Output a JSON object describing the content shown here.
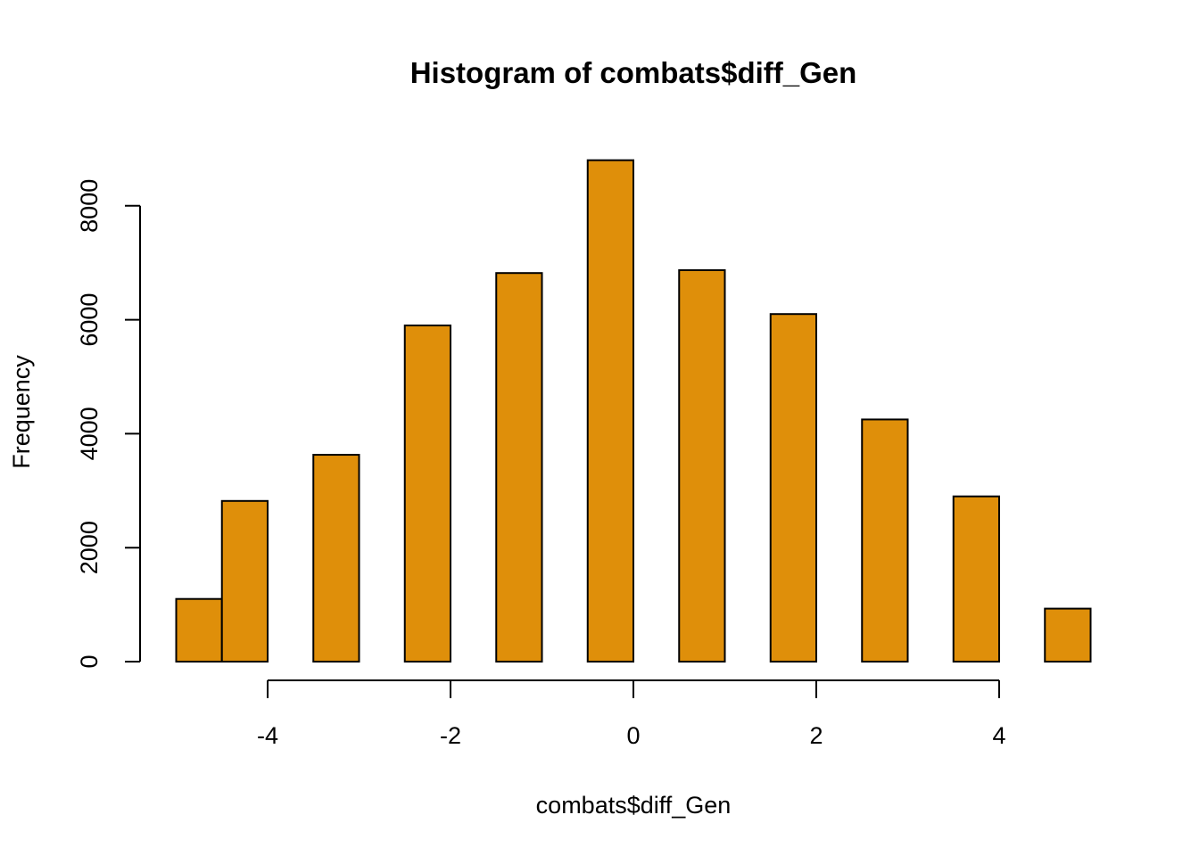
{
  "chart_data": {
    "type": "bar",
    "title": "Histogram of combats$diff_Gen",
    "xlabel": "combats$diff_Gen",
    "ylabel": "Frequency",
    "bar_color": "#DF8F0A",
    "border_color": "#000000",
    "xlim": [
      -5,
      5
    ],
    "ylim": [
      0,
      8800
    ],
    "bins": [
      {
        "x0": -5,
        "x1": -4.5,
        "count": 1100
      },
      {
        "x0": -4.5,
        "x1": -4,
        "count": 2820
      },
      {
        "x0": -3.5,
        "x1": -3,
        "count": 3630
      },
      {
        "x0": -2.5,
        "x1": -2,
        "count": 5900
      },
      {
        "x0": -1.5,
        "x1": -1,
        "count": 6820
      },
      {
        "x0": -0.5,
        "x1": 0,
        "count": 8800
      },
      {
        "x0": 0.5,
        "x1": 1,
        "count": 6870
      },
      {
        "x0": 1.5,
        "x1": 2,
        "count": 6100
      },
      {
        "x0": 2.5,
        "x1": 3,
        "count": 4250
      },
      {
        "x0": 3.5,
        "x1": 4,
        "count": 2900
      },
      {
        "x0": 4.5,
        "x1": 5,
        "count": 930
      }
    ],
    "x_ticks": [
      -4,
      -2,
      0,
      2,
      4
    ],
    "x_tick_labels": [
      "-4",
      "-2",
      "0",
      "2",
      "4"
    ],
    "y_ticks": [
      0,
      2000,
      4000,
      6000,
      8000
    ],
    "y_tick_labels": [
      "0",
      "2000",
      "4000",
      "6000",
      "8000"
    ]
  }
}
